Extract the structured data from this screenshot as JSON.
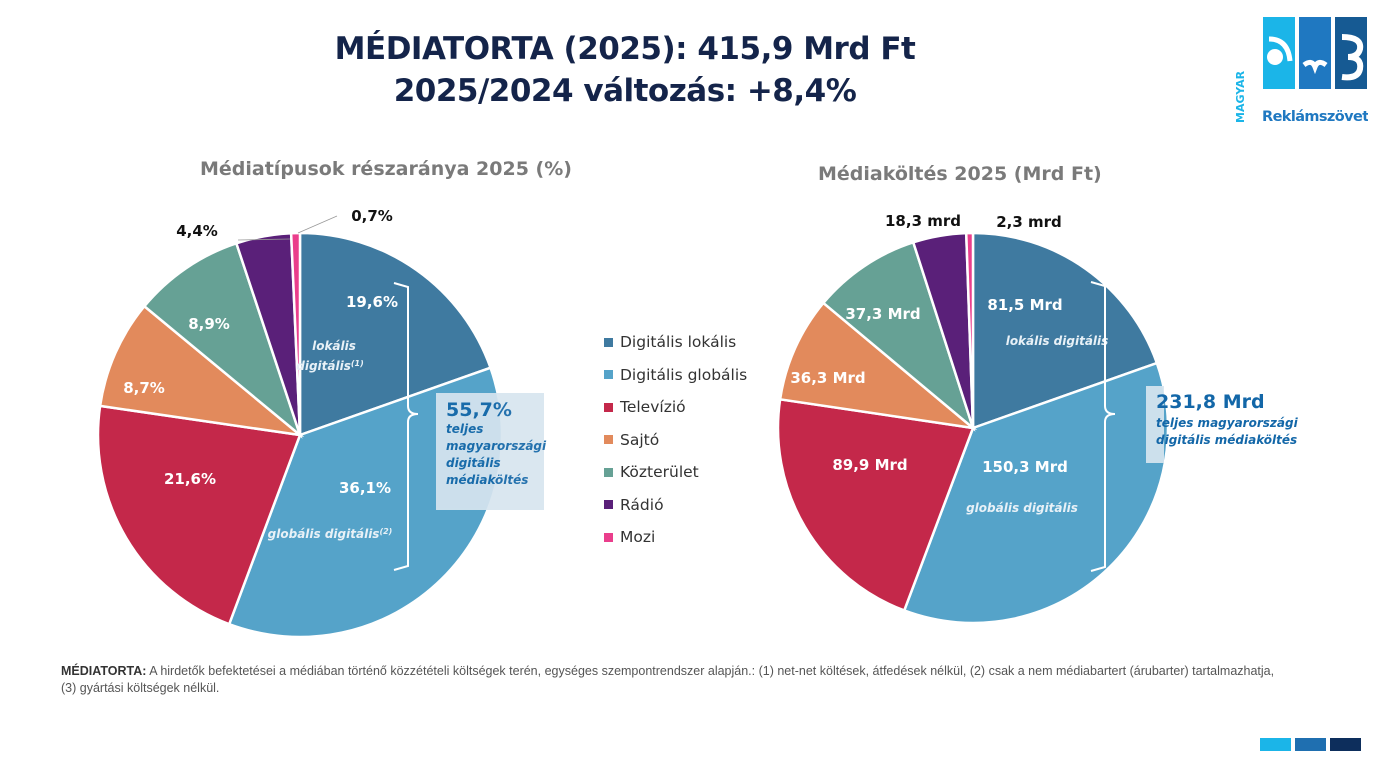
{
  "header": {
    "title_line1": "MÉDIATORTA (2025): 415,9 Mrd Ft",
    "title_line2": "2025/2024 változás: +8,4%"
  },
  "logo": {
    "side_text": "MAGYAR",
    "name": "Reklámszövetség"
  },
  "colors": {
    "digital_local": "#3f7aa0",
    "digital_global": "#55a3c9",
    "tv": "#c4284a",
    "press": "#e28a5c",
    "outdoor": "#66a195",
    "radio": "#5a2079",
    "cinema": "#ea3e8c",
    "title": "#14244a",
    "callout_text": "#1367a8",
    "bar1": "#1bb5e8",
    "bar2": "#1f6fb0",
    "bar3": "#0d2e5c"
  },
  "legend": [
    {
      "label": "Digitális lokális",
      "color": "#3f7aa0"
    },
    {
      "label": "Digitális globális",
      "color": "#55a3c9"
    },
    {
      "label": "Televízió",
      "color": "#c4284a"
    },
    {
      "label": "Sajtó",
      "color": "#e28a5c"
    },
    {
      "label": "Közterület",
      "color": "#66a195"
    },
    {
      "label": "Rádió",
      "color": "#5a2079"
    },
    {
      "label": "Mozi",
      "color": "#ea3e8c"
    }
  ],
  "chart_data": [
    {
      "type": "pie",
      "title": "Médiatípusok részaránya 2025  (%)",
      "categories": [
        "Digitális lokális",
        "Digitális globális",
        "Televízió",
        "Sajtó",
        "Közterület",
        "Rádió",
        "Mozi"
      ],
      "values": [
        19.6,
        36.1,
        21.6,
        8.7,
        8.9,
        4.4,
        0.7
      ],
      "labels": [
        "19,6%",
        "36,1%",
        "21,6%",
        "8,7%",
        "8,9%",
        "4,4%",
        "0,7%"
      ],
      "sublabels": {
        "local": "lokális",
        "local2": "digitális",
        "local_sup": "(1)",
        "global": "globális digitális",
        "global_sup": "(2)"
      },
      "callout": {
        "value": "55,7%",
        "lines": [
          "teljes",
          "magyarországi",
          "digitális",
          "médiaköltés"
        ]
      }
    },
    {
      "type": "pie",
      "title": "Médiaköltés 2025 (Mrd Ft)",
      "unit": "Mrd Ft",
      "categories": [
        "Digitális lokális",
        "Digitális globális",
        "Televízió",
        "Sajtó",
        "Közterület",
        "Rádió",
        "Mozi"
      ],
      "values": [
        81.5,
        150.3,
        89.9,
        36.3,
        37.3,
        18.3,
        2.3
      ],
      "labels": [
        "81,5  Mrd",
        "150,3 Mrd",
        "89,9 Mrd",
        "36,3 Mrd",
        "37,3 Mrd",
        "18,3 mrd",
        "2,3 mrd"
      ],
      "sublabels": {
        "local": "lokális digitális",
        "global": "globális digitális"
      },
      "callout": {
        "value": "231,8 Mrd",
        "lines": [
          "teljes magyarországi",
          "digitális médiaköltés"
        ]
      }
    }
  ],
  "footnote": {
    "lead": "MÉDIATORTA:",
    "text": " A hirdetők befektetései a médiában történő közzétételi költségek terén, egységes szempontrendszer alapján.: (1) net-net költések, átfedések nélkül, (2) csak a nem médiabartert (árubarter) tartalmazhatja, (3) gyártási költségek nélkül."
  }
}
